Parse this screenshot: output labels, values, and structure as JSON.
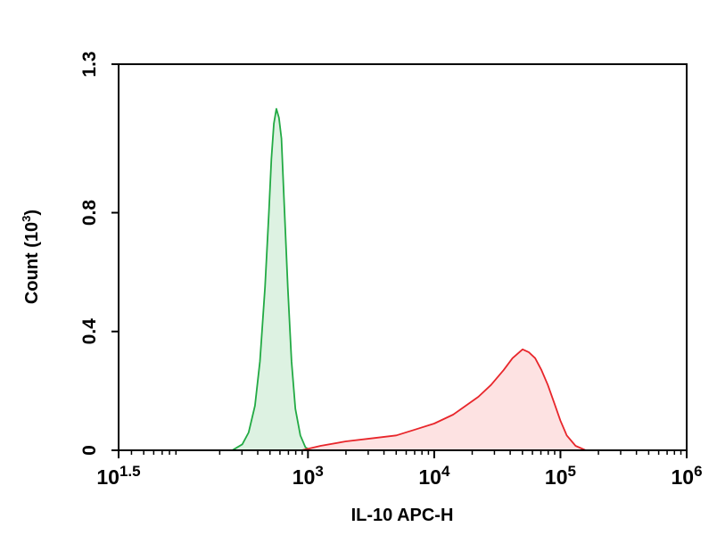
{
  "chart_data": {
    "type": "area",
    "xlabel": "IL-10 APC-H",
    "ylabel": {
      "prefix": "Count (10",
      "exponent": "3",
      "suffix": ")"
    },
    "x_scale": "log10",
    "xlim": [
      1.5,
      6
    ],
    "ylim": [
      0,
      1.3
    ],
    "x_ticks": [
      {
        "value": 1.5,
        "base": "10",
        "exp": "1.5"
      },
      {
        "value": 3,
        "base": "10",
        "exp": "3"
      },
      {
        "value": 4,
        "base": "10",
        "exp": "4"
      },
      {
        "value": 5,
        "base": "10",
        "exp": "5"
      },
      {
        "value": 6,
        "base": "10",
        "exp": "6"
      }
    ],
    "y_ticks": [
      {
        "value": 0,
        "label": "0"
      },
      {
        "value": 0.4,
        "label": "0.4"
      },
      {
        "value": 0.8,
        "label": "0.8"
      },
      {
        "value": 1.3,
        "label": "1.3"
      }
    ],
    "grid": false,
    "legend": "none",
    "colors": {
      "green_stroke": "#22aa44",
      "green_fill": "#ddf2e2",
      "red_stroke": "#e8262b",
      "red_fill": "#fde2e2"
    },
    "series": [
      {
        "color": "green",
        "points": [
          [
            2.4,
            0.0
          ],
          [
            2.48,
            0.02
          ],
          [
            2.53,
            0.06
          ],
          [
            2.58,
            0.15
          ],
          [
            2.62,
            0.3
          ],
          [
            2.66,
            0.55
          ],
          [
            2.69,
            0.8
          ],
          [
            2.71,
            0.98
          ],
          [
            2.73,
            1.1
          ],
          [
            2.75,
            1.15
          ],
          [
            2.77,
            1.12
          ],
          [
            2.79,
            1.05
          ],
          [
            2.81,
            0.85
          ],
          [
            2.84,
            0.55
          ],
          [
            2.87,
            0.3
          ],
          [
            2.9,
            0.14
          ],
          [
            2.94,
            0.05
          ],
          [
            2.98,
            0.01
          ],
          [
            3.02,
            0.0
          ]
        ]
      },
      {
        "color": "red",
        "points": [
          [
            2.95,
            0.0
          ],
          [
            3.1,
            0.015
          ],
          [
            3.3,
            0.03
          ],
          [
            3.5,
            0.04
          ],
          [
            3.7,
            0.05
          ],
          [
            3.85,
            0.07
          ],
          [
            4.0,
            0.09
          ],
          [
            4.15,
            0.12
          ],
          [
            4.25,
            0.15
          ],
          [
            4.35,
            0.18
          ],
          [
            4.45,
            0.22
          ],
          [
            4.55,
            0.27
          ],
          [
            4.62,
            0.31
          ],
          [
            4.7,
            0.34
          ],
          [
            4.75,
            0.33
          ],
          [
            4.8,
            0.31
          ],
          [
            4.85,
            0.27
          ],
          [
            4.9,
            0.22
          ],
          [
            4.95,
            0.16
          ],
          [
            5.0,
            0.1
          ],
          [
            5.05,
            0.05
          ],
          [
            5.12,
            0.015
          ],
          [
            5.2,
            0.0
          ]
        ]
      }
    ]
  }
}
